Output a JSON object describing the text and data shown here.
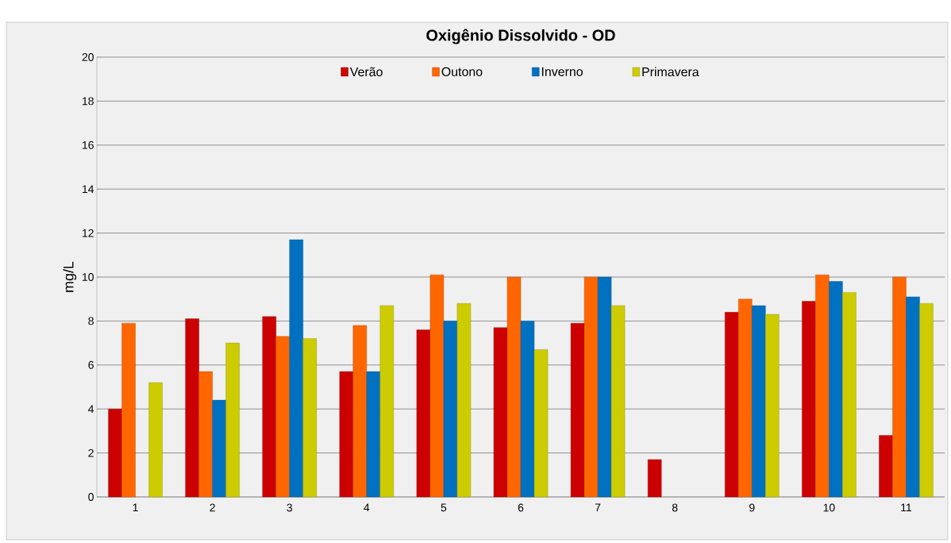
{
  "chart_data": {
    "type": "bar",
    "title": "Oxigênio Dissolvido - OD",
    "ylabel": "mg/L",
    "categories": [
      "1",
      "2",
      "3",
      "4",
      "5",
      "6",
      "7",
      "8",
      "9",
      "10",
      "11"
    ],
    "series": [
      {
        "name": "Verão",
        "color": "#cc0000",
        "values": [
          4.0,
          8.1,
          8.2,
          5.7,
          7.6,
          7.7,
          7.9,
          1.7,
          8.4,
          8.9,
          2.8
        ]
      },
      {
        "name": "Outono",
        "color": "#ff6600",
        "values": [
          7.9,
          5.7,
          7.3,
          7.8,
          10.1,
          10.0,
          10.0,
          null,
          9.0,
          10.1,
          10.0
        ]
      },
      {
        "name": "Inverno",
        "color": "#0070c0",
        "values": [
          null,
          4.4,
          11.7,
          5.7,
          8.0,
          8.0,
          10.0,
          null,
          8.7,
          9.8,
          9.1
        ]
      },
      {
        "name": "Primavera",
        "color": "#cccc00",
        "values": [
          5.2,
          7.0,
          7.2,
          8.7,
          8.8,
          6.7,
          8.7,
          null,
          8.3,
          9.3,
          8.8
        ]
      }
    ],
    "ylim": [
      0,
      20
    ],
    "yticks": [
      0,
      2,
      4,
      6,
      8,
      10,
      12,
      14,
      16,
      18,
      20
    ],
    "grid": "y",
    "legend": "top"
  }
}
